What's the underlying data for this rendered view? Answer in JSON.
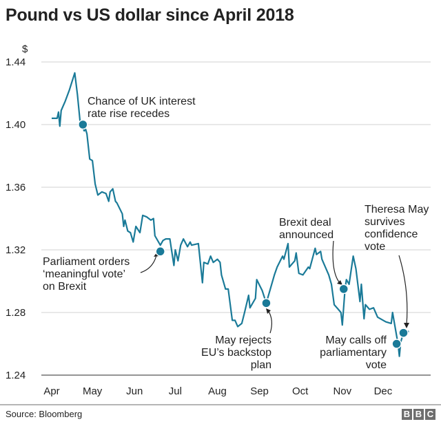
{
  "chart_data": {
    "type": "line",
    "title": "Pound vs US dollar since April 2018",
    "ylabel": "$",
    "xlabel": "",
    "ylim": [
      1.24,
      1.44
    ],
    "yticks": [
      "1.44",
      "1.40",
      "1.36",
      "1.32",
      "1.28",
      "1.24"
    ],
    "xticks": [
      "Apr",
      "May",
      "Jun",
      "Jul",
      "Aug",
      "Sep",
      "Oct",
      "Nov",
      "Dec"
    ],
    "xlim": [
      "2018-04-01",
      "2018-12-31"
    ],
    "grid": true,
    "line_color": "#1a7a98",
    "points": [
      [
        "2018-04-01",
        1.404
      ],
      [
        "2018-04-05",
        1.404
      ],
      [
        "2018-04-06",
        1.408
      ],
      [
        "2018-04-07",
        1.399
      ],
      [
        "2018-04-08",
        1.409
      ],
      [
        "2018-04-11",
        1.415
      ],
      [
        "2018-04-14",
        1.422
      ],
      [
        "2018-04-18",
        1.433
      ],
      [
        "2018-04-20",
        1.419
      ],
      [
        "2018-04-22",
        1.401
      ],
      [
        "2018-04-25",
        1.396
      ],
      [
        "2018-04-26",
        1.397
      ],
      [
        "2018-04-27",
        1.394
      ],
      [
        "2018-04-29",
        1.378
      ],
      [
        "2018-05-01",
        1.377
      ],
      [
        "2018-05-03",
        1.362
      ],
      [
        "2018-05-05",
        1.355
      ],
      [
        "2018-05-08",
        1.357
      ],
      [
        "2018-05-11",
        1.356
      ],
      [
        "2018-05-13",
        1.351
      ],
      [
        "2018-05-14",
        1.357
      ],
      [
        "2018-05-16",
        1.359
      ],
      [
        "2018-05-18",
        1.351
      ],
      [
        "2018-05-19",
        1.35
      ],
      [
        "2018-05-23",
        1.343
      ],
      [
        "2018-05-24",
        1.335
      ],
      [
        "2018-05-25",
        1.339
      ],
      [
        "2018-05-27",
        1.332
      ],
      [
        "2018-05-29",
        1.331
      ],
      [
        "2018-05-31",
        1.325
      ],
      [
        "2018-06-02",
        1.335
      ],
      [
        "2018-06-05",
        1.331
      ],
      [
        "2018-06-07",
        1.342
      ],
      [
        "2018-06-10",
        1.341
      ],
      [
        "2018-06-13",
        1.339
      ],
      [
        "2018-06-15",
        1.34
      ],
      [
        "2018-06-16",
        1.329
      ],
      [
        "2018-06-20",
        1.323
      ],
      [
        "2018-06-22",
        1.326
      ],
      [
        "2018-06-24",
        1.327
      ],
      [
        "2018-06-27",
        1.327
      ],
      [
        "2018-06-30",
        1.31
      ],
      [
        "2018-07-01",
        1.32
      ],
      [
        "2018-07-03",
        1.313
      ],
      [
        "2018-07-05",
        1.323
      ],
      [
        "2018-07-07",
        1.327
      ],
      [
        "2018-07-10",
        1.322
      ],
      [
        "2018-07-12",
        1.325
      ],
      [
        "2018-07-13",
        1.323
      ],
      [
        "2018-07-18",
        1.324
      ],
      [
        "2018-07-21",
        1.299
      ],
      [
        "2018-07-22",
        1.312
      ],
      [
        "2018-07-25",
        1.311
      ],
      [
        "2018-07-27",
        1.316
      ],
      [
        "2018-07-29",
        1.312
      ],
      [
        "2018-08-01",
        1.314
      ],
      [
        "2018-08-03",
        1.312
      ],
      [
        "2018-08-04",
        1.304
      ],
      [
        "2018-08-07",
        1.295
      ],
      [
        "2018-08-09",
        1.295
      ],
      [
        "2018-08-12",
        1.275
      ],
      [
        "2018-08-14",
        1.275
      ],
      [
        "2018-08-16",
        1.271
      ],
      [
        "2018-08-19",
        1.273
      ],
      [
        "2018-08-21",
        1.28
      ],
      [
        "2018-08-24",
        1.291
      ],
      [
        "2018-08-25",
        1.283
      ],
      [
        "2018-08-29",
        1.289
      ],
      [
        "2018-08-30",
        1.301
      ],
      [
        "2018-09-03",
        1.294
      ],
      [
        "2018-09-06",
        1.286
      ],
      [
        "2018-09-09",
        1.295
      ],
      [
        "2018-09-12",
        1.304
      ],
      [
        "2018-09-14",
        1.309
      ],
      [
        "2018-09-18",
        1.316
      ],
      [
        "2018-09-19",
        1.314
      ],
      [
        "2018-09-22",
        1.324
      ],
      [
        "2018-09-23",
        1.309
      ],
      [
        "2018-09-27",
        1.313
      ],
      [
        "2018-09-28",
        1.318
      ],
      [
        "2018-09-30",
        1.305
      ],
      [
        "2018-10-03",
        1.304
      ],
      [
        "2018-10-07",
        1.309
      ],
      [
        "2018-10-08",
        1.308
      ],
      [
        "2018-10-12",
        1.321
      ],
      [
        "2018-10-13",
        1.317
      ],
      [
        "2018-10-16",
        1.319
      ],
      [
        "2018-10-17",
        1.314
      ],
      [
        "2018-10-22",
        1.304
      ],
      [
        "2018-10-24",
        1.298
      ],
      [
        "2018-10-26",
        1.285
      ],
      [
        "2018-10-29",
        1.282
      ],
      [
        "2018-10-31",
        1.28
      ],
      [
        "2018-11-01",
        1.272
      ],
      [
        "2018-11-03",
        1.295
      ],
      [
        "2018-11-04",
        1.301
      ],
      [
        "2018-11-06",
        1.298
      ],
      [
        "2018-11-09",
        1.316
      ],
      [
        "2018-11-11",
        1.308
      ],
      [
        "2018-11-14",
        1.287
      ],
      [
        "2018-11-15",
        1.298
      ],
      [
        "2018-11-17",
        1.276
      ],
      [
        "2018-11-18",
        1.285
      ],
      [
        "2018-11-21",
        1.282
      ],
      [
        "2018-11-24",
        1.283
      ],
      [
        "2018-11-27",
        1.277
      ],
      [
        "2018-11-29",
        1.276
      ],
      [
        "2018-12-03",
        1.274
      ],
      [
        "2018-12-07",
        1.273
      ],
      [
        "2018-12-08",
        1.28
      ],
      [
        "2018-12-12",
        1.26
      ],
      [
        "2018-12-13",
        1.252
      ],
      [
        "2018-12-14",
        1.261
      ],
      [
        "2018-12-16",
        1.267
      ],
      [
        "2018-12-20",
        1.268
      ]
    ],
    "annotations": [
      {
        "lines": [
          "Chance of UK interest",
          "rate rise recedes"
        ],
        "date": "2018-04-24",
        "value": 1.4
      },
      {
        "lines": [
          "Parliament orders",
          "‘meaningful vote’",
          "on Brexit"
        ],
        "date": "2018-06-20",
        "value": 1.319
      },
      {
        "lines": [
          "May rejects",
          "EU’s backstop",
          "plan"
        ],
        "date": "2018-09-06",
        "value": 1.286
      },
      {
        "lines": [
          "Brexit deal",
          "announced"
        ],
        "date": "2018-11-02",
        "value": 1.295
      },
      {
        "lines": [
          "May calls off",
          "parliamentary",
          "vote"
        ],
        "date": "2018-12-11",
        "value": 1.26
      },
      {
        "lines": [
          "Theresa May",
          "survives",
          "confidence",
          "vote"
        ],
        "date": "2018-12-16",
        "value": 1.267
      }
    ]
  },
  "footer": {
    "source": "Source: Bloomberg",
    "logo": [
      "B",
      "B",
      "C"
    ]
  }
}
